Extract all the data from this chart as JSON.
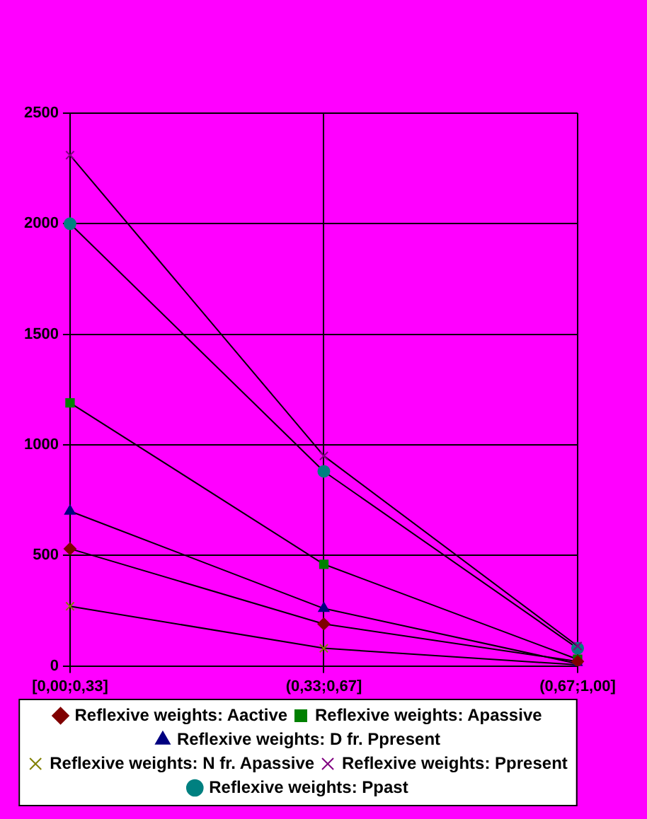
{
  "chart_data": {
    "type": "line",
    "categories": [
      "[0,00;0,33]",
      "(0,33;0,67]",
      "(0,67;1,00]"
    ],
    "ylim": [
      0,
      2500
    ],
    "yticks": [
      0,
      500,
      1000,
      1500,
      2000,
      2500
    ],
    "grid": true,
    "legend": "bottom",
    "series": [
      {
        "name": "Reflexive weights: Aactive",
        "color": "#800000",
        "marker": "diamond",
        "values": [
          530,
          190,
          20
        ]
      },
      {
        "name": "Reflexive weights: Apassive",
        "color": "#008000",
        "marker": "square",
        "values": [
          1190,
          460,
          30
        ]
      },
      {
        "name": "Reflexive weights: D fr. Ppresent",
        "color": "#000080",
        "marker": "triangle",
        "values": [
          700,
          260,
          10
        ]
      },
      {
        "name": "Reflexive weights: N fr. Apassive",
        "color": "#808000",
        "marker": "cross",
        "values": [
          270,
          80,
          5
        ]
      },
      {
        "name": "Reflexive weights: Ppresent",
        "color": "#800080",
        "marker": "cross",
        "values": [
          2310,
          950,
          90
        ]
      },
      {
        "name": "Reflexive weights: Ppast",
        "color": "#008080",
        "marker": "circle",
        "values": [
          2000,
          880,
          80
        ]
      }
    ]
  }
}
